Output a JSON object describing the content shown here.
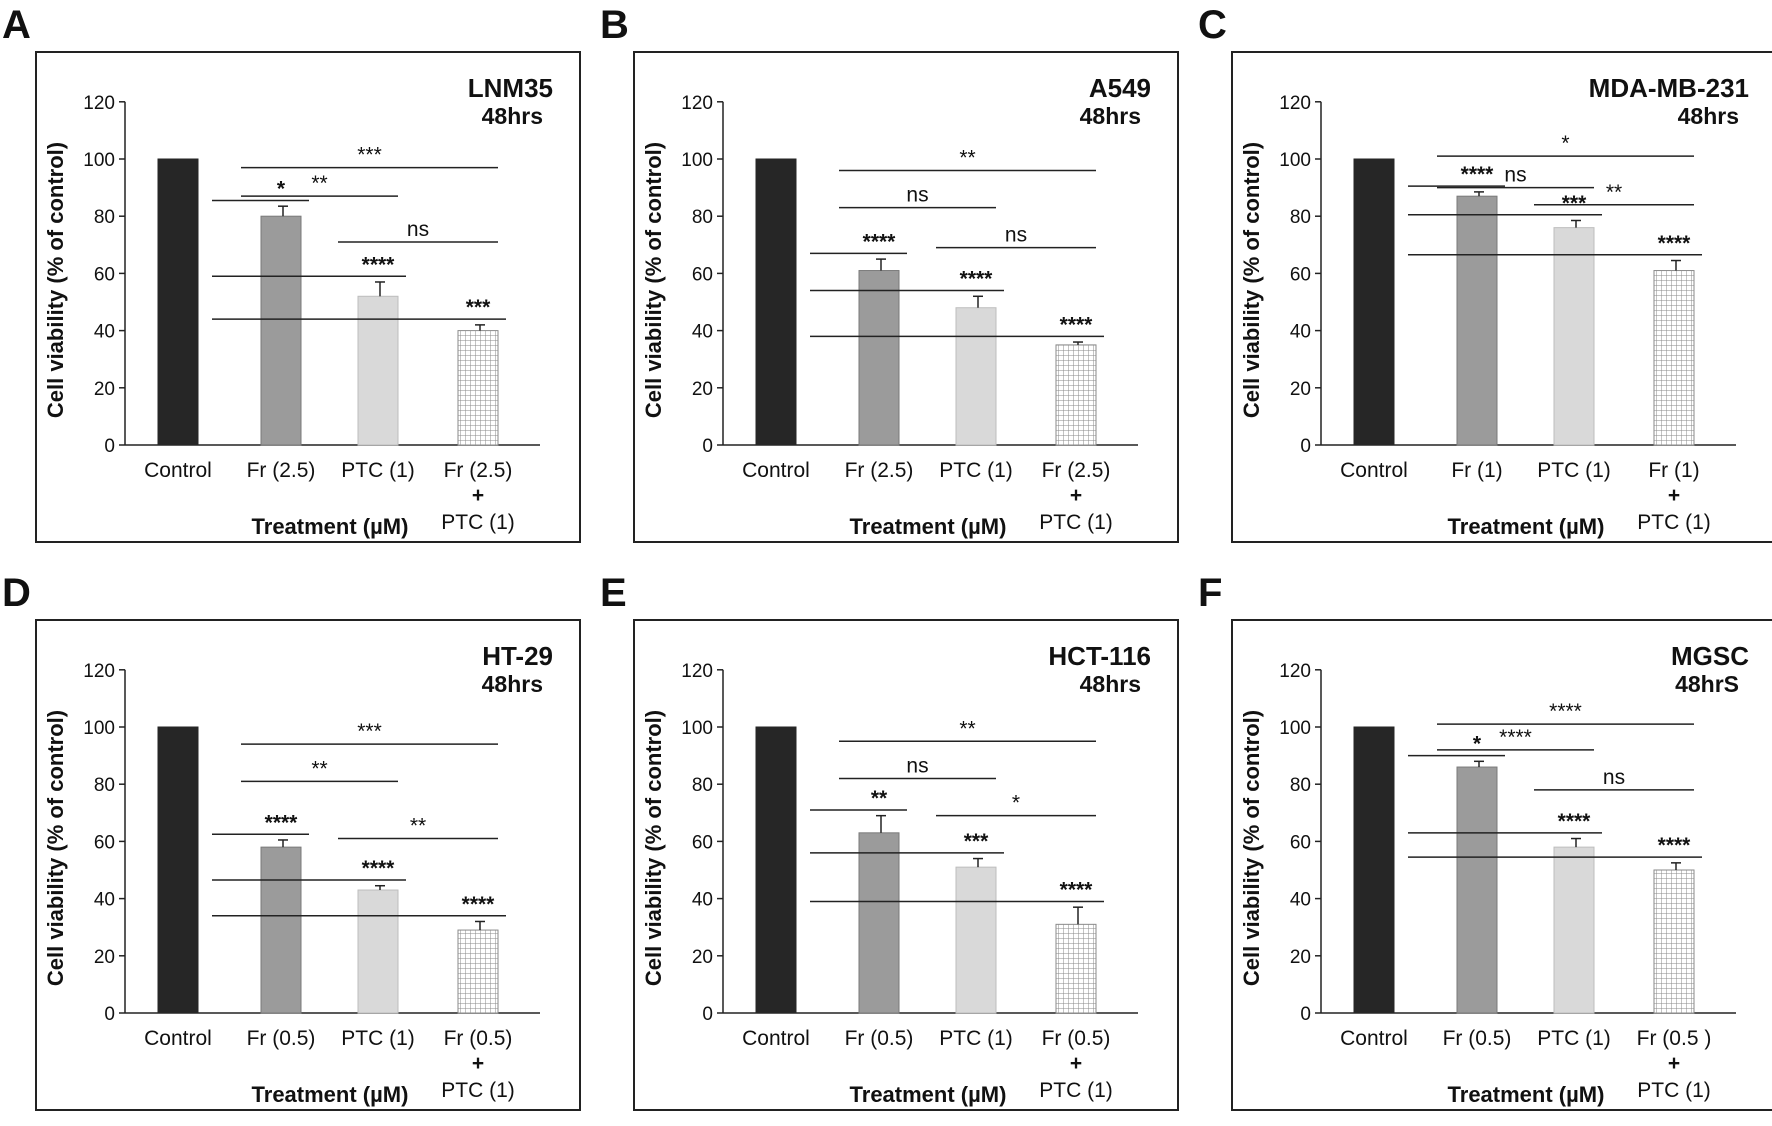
{
  "chart_data": [
    {
      "panel": "A",
      "type": "bar",
      "title": "LNM35",
      "subtitle": "48hrs",
      "ylabel": "Cell viability (% of control)",
      "xlabel": "Treatment (µM)",
      "ylim": [
        0,
        120
      ],
      "yticks": [
        0,
        20,
        40,
        60,
        80,
        100,
        120
      ],
      "grid": false,
      "categories": [
        [
          "Control"
        ],
        [
          "Fr (2.5)"
        ],
        [
          "PTC (1)"
        ],
        [
          "Fr (2.5)",
          "+",
          "PTC (1)"
        ]
      ],
      "values": [
        100,
        80,
        52,
        40
      ],
      "errors": [
        0,
        3.5,
        5,
        2
      ],
      "vs_control": [
        "",
        "*",
        "****",
        "***"
      ],
      "pairwise": [
        {
          "from": 1,
          "to": 2,
          "label": "**",
          "level": 87
        },
        {
          "from": 1,
          "to": 3,
          "label": "***",
          "level": 97
        },
        {
          "from": 2,
          "to": 3,
          "label": "ns",
          "level": 71
        }
      ]
    },
    {
      "panel": "B",
      "type": "bar",
      "title": "A549",
      "subtitle": "48hrs",
      "ylabel": "Cell viability (% of control)",
      "xlabel": "Treatment (µM)",
      "ylim": [
        0,
        120
      ],
      "yticks": [
        0,
        20,
        40,
        60,
        80,
        100,
        120
      ],
      "grid": false,
      "categories": [
        [
          "Control"
        ],
        [
          "Fr (2.5)"
        ],
        [
          "PTC (1)"
        ],
        [
          "Fr (2.5)",
          "+",
          "PTC (1)"
        ]
      ],
      "values": [
        100,
        61,
        48,
        35
      ],
      "errors": [
        0,
        4,
        4,
        1
      ],
      "vs_control": [
        "",
        "****",
        "****",
        "****"
      ],
      "pairwise": [
        {
          "from": 1,
          "to": 2,
          "label": "ns",
          "level": 83
        },
        {
          "from": 1,
          "to": 3,
          "label": "**",
          "level": 96
        },
        {
          "from": 2,
          "to": 3,
          "label": "ns",
          "level": 69
        }
      ]
    },
    {
      "panel": "C",
      "type": "bar",
      "title": "MDA-MB-231",
      "subtitle": "48hrs",
      "ylabel": "Cell viability (% of control)",
      "xlabel": "Treatment (µM)",
      "ylim": [
        0,
        120
      ],
      "yticks": [
        0,
        20,
        40,
        60,
        80,
        100,
        120
      ],
      "grid": false,
      "categories": [
        [
          "Control"
        ],
        [
          "Fr (1)"
        ],
        [
          "PTC (1)"
        ],
        [
          "Fr (1)",
          "+",
          "PTC (1)"
        ]
      ],
      "values": [
        100,
        87,
        76,
        61
      ],
      "errors": [
        0,
        1.5,
        2.5,
        3.5
      ],
      "vs_control": [
        "",
        "****",
        "***",
        "****"
      ],
      "pairwise": [
        {
          "from": 1,
          "to": 2,
          "label": "ns",
          "level": 90
        },
        {
          "from": 1,
          "to": 3,
          "label": "*",
          "level": 101
        },
        {
          "from": 2,
          "to": 3,
          "label": "**",
          "level": 84
        }
      ]
    },
    {
      "panel": "D",
      "type": "bar",
      "title": "HT-29",
      "subtitle": "48hrs",
      "ylabel": "Cell viability (% of control)",
      "xlabel": "Treatment (µM)",
      "ylim": [
        0,
        120
      ],
      "yticks": [
        0,
        20,
        40,
        60,
        80,
        100,
        120
      ],
      "grid": false,
      "categories": [
        [
          "Control"
        ],
        [
          "Fr (0.5)"
        ],
        [
          "PTC (1)"
        ],
        [
          "Fr (0.5)",
          "+",
          "PTC (1)"
        ]
      ],
      "values": [
        100,
        58,
        43,
        29
      ],
      "errors": [
        0,
        2.5,
        1.5,
        3
      ],
      "vs_control": [
        "",
        "****",
        "****",
        "****"
      ],
      "pairwise": [
        {
          "from": 1,
          "to": 2,
          "label": "**",
          "level": 81
        },
        {
          "from": 1,
          "to": 3,
          "label": "***",
          "level": 94
        },
        {
          "from": 2,
          "to": 3,
          "label": "**",
          "level": 61
        }
      ]
    },
    {
      "panel": "E",
      "type": "bar",
      "title": "HCT-116",
      "subtitle": "48hrs",
      "ylabel": "Cell viability (% of control)",
      "xlabel": "Treatment (µM)",
      "ylim": [
        0,
        120
      ],
      "yticks": [
        0,
        20,
        40,
        60,
        80,
        100,
        120
      ],
      "grid": false,
      "categories": [
        [
          "Control"
        ],
        [
          "Fr (0.5)"
        ],
        [
          "PTC (1)"
        ],
        [
          "Fr (0.5)",
          "+",
          "PTC (1)"
        ]
      ],
      "values": [
        100,
        63,
        51,
        31
      ],
      "errors": [
        0,
        6,
        3,
        6
      ],
      "vs_control": [
        "",
        "**",
        "***",
        "****"
      ],
      "pairwise": [
        {
          "from": 1,
          "to": 2,
          "label": "ns",
          "level": 82
        },
        {
          "from": 1,
          "to": 3,
          "label": "**",
          "level": 95
        },
        {
          "from": 2,
          "to": 3,
          "label": "*",
          "level": 69
        }
      ]
    },
    {
      "panel": "F",
      "type": "bar",
      "title": "MGSC",
      "subtitle": "48hrS",
      "ylabel": "Cell viability (% of control)",
      "xlabel": "Treatment (µM)",
      "ylim": [
        0,
        120
      ],
      "yticks": [
        0,
        20,
        40,
        60,
        80,
        100,
        120
      ],
      "grid": false,
      "categories": [
        [
          "Control"
        ],
        [
          "Fr (0.5)"
        ],
        [
          "PTC (1)"
        ],
        [
          "Fr (0.5 )",
          "+",
          "PTC (1)"
        ]
      ],
      "values": [
        100,
        86,
        58,
        50
      ],
      "errors": [
        0,
        2,
        3,
        2.5
      ],
      "vs_control": [
        "",
        "*",
        "****",
        "****"
      ],
      "pairwise": [
        {
          "from": 1,
          "to": 2,
          "label": "****",
          "level": 92
        },
        {
          "from": 1,
          "to": 3,
          "label": "****",
          "level": 101
        },
        {
          "from": 2,
          "to": 3,
          "label": "ns",
          "level": 78
        }
      ]
    }
  ]
}
